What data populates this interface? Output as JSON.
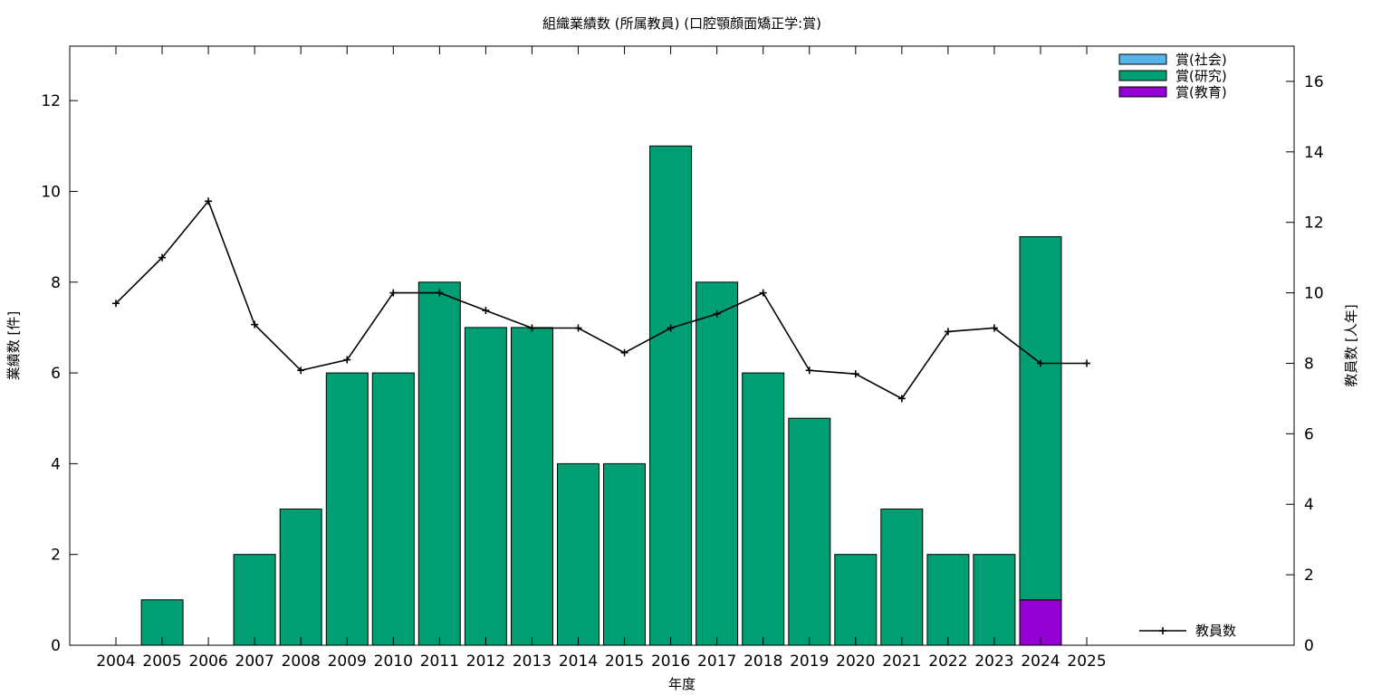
{
  "chart_data": {
    "type": "bar",
    "title": "組織業績数 (所属教員) (口腔顎顔面矯正学:賞)",
    "xlabel": "年度",
    "ylabel": "業績数 [件]",
    "y2label": "教員数 [人年]",
    "categories": [
      "2004",
      "2005",
      "2006",
      "2007",
      "2008",
      "2009",
      "2010",
      "2011",
      "2012",
      "2013",
      "2014",
      "2015",
      "2016",
      "2017",
      "2018",
      "2019",
      "2020",
      "2021",
      "2022",
      "2023",
      "2024",
      "2025"
    ],
    "ylim": [
      0,
      13.2
    ],
    "y2lim": [
      0,
      17
    ],
    "yticks": [
      0,
      2,
      4,
      6,
      8,
      10,
      12
    ],
    "y2ticks": [
      0,
      2,
      4,
      6,
      8,
      10,
      12,
      14,
      16
    ],
    "grid": false,
    "legend_position": "top-right",
    "stack_order": [
      "教育",
      "研究",
      "社会"
    ],
    "series": [
      {
        "key": "社会",
        "name": "賞(社会)",
        "color": "#56b4e9",
        "values": [
          0,
          0,
          0,
          0,
          0,
          0,
          0,
          0,
          0,
          0,
          0,
          0,
          0,
          0,
          0,
          0,
          0,
          0,
          0,
          0,
          0,
          0
        ]
      },
      {
        "key": "研究",
        "name": "賞(研究)",
        "color": "#009e73",
        "values": [
          0,
          1,
          0,
          2,
          3,
          6,
          6,
          8,
          7,
          7,
          4,
          4,
          11,
          8,
          6,
          5,
          2,
          3,
          2,
          2,
          8,
          0
        ]
      },
      {
        "key": "教育",
        "name": "賞(教育)",
        "color": "#9400d3",
        "values": [
          0,
          0,
          0,
          0,
          0,
          0,
          0,
          0,
          0,
          0,
          0,
          0,
          0,
          0,
          0,
          0,
          0,
          0,
          0,
          0,
          1,
          0
        ]
      }
    ],
    "line_series": {
      "name": "教員数",
      "axis": "y2",
      "color": "#000000",
      "values": [
        9.7,
        11.0,
        12.6,
        9.1,
        7.8,
        8.1,
        10.0,
        10.0,
        9.5,
        9.0,
        9.0,
        8.3,
        9.0,
        9.4,
        10.0,
        7.8,
        7.7,
        7.0,
        8.9,
        9.0,
        8.0,
        8.0
      ]
    }
  }
}
